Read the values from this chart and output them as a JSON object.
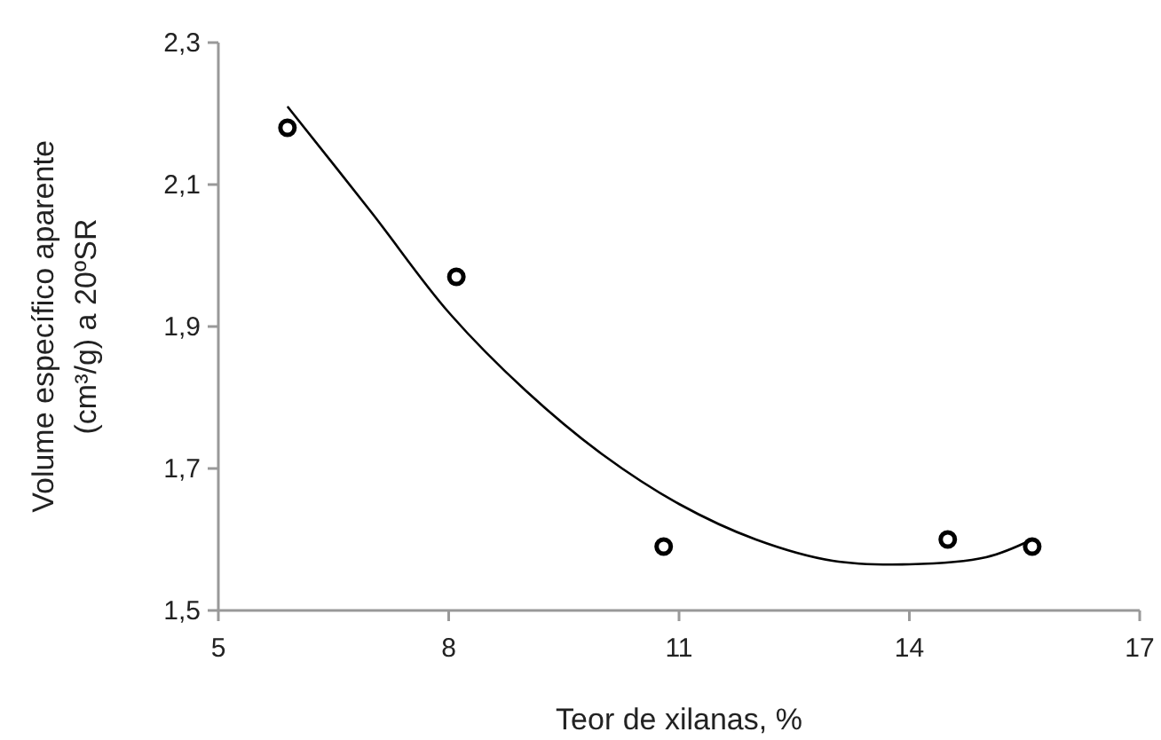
{
  "chart_data": {
    "type": "scatter",
    "xlabel": "Teor de xilanas, %",
    "ylabel": "Volume específico aparente (cm³/g) a 20ºSR",
    "xlim": [
      5,
      17
    ],
    "xticks": [
      5,
      8,
      11,
      14,
      17
    ],
    "ylim": [
      1.5,
      2.3
    ],
    "yticks": [
      {
        "value": 1.5,
        "label": "1,5"
      },
      {
        "value": 1.7,
        "label": "1,7"
      },
      {
        "value": 1.9,
        "label": "1,9"
      },
      {
        "value": 2.1,
        "label": "2,1"
      },
      {
        "value": 2.3,
        "label": "2,3"
      }
    ],
    "grid": false,
    "marker": "circle",
    "series": [
      {
        "color": "#000000",
        "x": [
          5.9,
          8.1,
          10.8,
          14.5,
          15.6
        ],
        "values": [
          2.18,
          1.97,
          1.59,
          1.6,
          1.59
        ]
      },
      {
        "type": "line",
        "color": "#000000",
        "marker": "none",
        "line_style": "solid",
        "x": [
          5.9,
          7,
          8,
          9,
          10,
          11,
          12,
          13,
          14,
          15,
          15.6
        ],
        "values": [
          2.21,
          2.06,
          1.92,
          1.81,
          1.72,
          1.65,
          1.6,
          1.57,
          1.565,
          1.575,
          1.6
        ]
      }
    ]
  }
}
